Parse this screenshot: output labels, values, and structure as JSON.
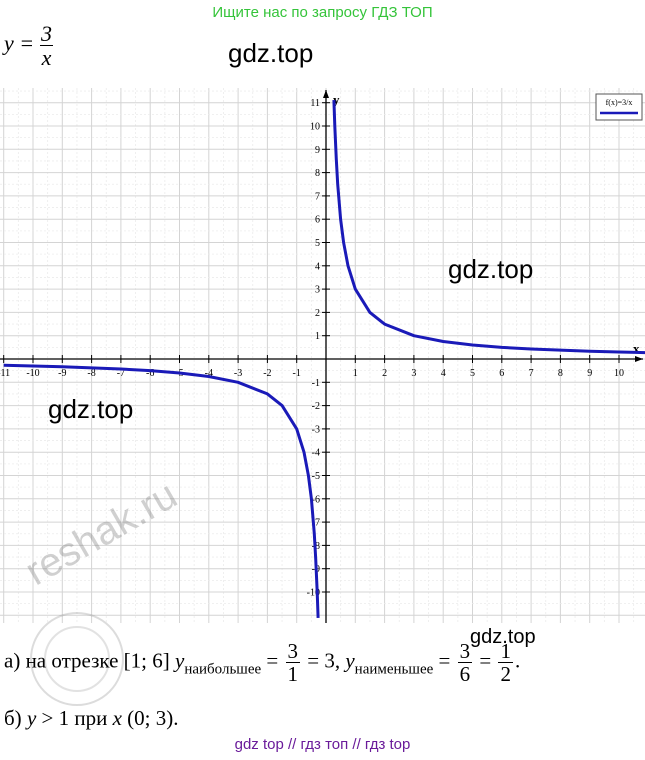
{
  "header": {
    "link_text": "Ищите нас по запросу ГДЗ ТОП"
  },
  "formula": {
    "lhs": "y =",
    "numerator": "3",
    "denominator": "x"
  },
  "watermarks": {
    "gdz_1": "gdz.top",
    "gdz_2": "gdz.top",
    "gdz_3": "gdz.top",
    "gdz_4": "gdz.top",
    "reshak": "reshak.ru"
  },
  "answers": {
    "a_prefix": "а) на отрезке [1; 6] ",
    "a_y1": "y",
    "a_sub1": "наибольшее",
    "a_eq1": " = ",
    "a_f1_num": "3",
    "a_f1_den": "1",
    "a_res1": " = 3, ",
    "a_y2": "y",
    "a_sub2": "наименьшее",
    "a_eq2": " = ",
    "a_f2_num": "3",
    "a_f2_den": "6",
    "a_eq3": " = ",
    "a_f3_num": "1",
    "a_f3_den": "2",
    "a_end": ".",
    "b_prefix": "б) ",
    "b_y": "y",
    "b_gt": " > 1 при ",
    "b_x": "x",
    "b_interval": " (0; 3)."
  },
  "footer": {
    "text": "gdz top  //  гдз топ  //  гдз top"
  },
  "colors": {
    "curve": "#1a1ab8",
    "grid": "#d4d4d4",
    "header_link": "#35c43a",
    "footer": "#6a1b9a"
  },
  "chart_data": {
    "type": "line",
    "function": "f(x)=3/x",
    "legend": "f(x)=3/x",
    "legend_position": "top-right",
    "xlabel": "x",
    "ylabel": "y",
    "xlim": [
      -11,
      11
    ],
    "ylim": [
      -11,
      11
    ],
    "grid": true,
    "x_ticks": [
      -11,
      -10,
      -9,
      -8,
      -7,
      -6,
      -5,
      -4,
      -3,
      -2,
      -1,
      1,
      2,
      3,
      4,
      5,
      6,
      7,
      8,
      9,
      10
    ],
    "y_ticks": [
      -10,
      -9,
      -8,
      -7,
      -6,
      -5,
      -4,
      -3,
      -2,
      -1,
      1,
      2,
      3,
      4,
      5,
      6,
      7,
      8,
      9,
      10,
      11
    ],
    "series": [
      {
        "name": "f(x)=3/x",
        "branch": "positive",
        "x": [
          0.27,
          0.3,
          0.35,
          0.4,
          0.5,
          0.6,
          0.75,
          1,
          1.5,
          2,
          3,
          4,
          5,
          6,
          7,
          8,
          9,
          10,
          11
        ],
        "y": [
          11.11,
          10,
          8.57,
          7.5,
          6,
          5,
          4,
          3,
          2,
          1.5,
          1,
          0.75,
          0.6,
          0.5,
          0.43,
          0.38,
          0.33,
          0.3,
          0.27
        ]
      },
      {
        "name": "f(x)=3/x",
        "branch": "negative",
        "x": [
          -11,
          -10,
          -9,
          -8,
          -7,
          -6,
          -5,
          -4,
          -3,
          -2,
          -1.5,
          -1,
          -0.75,
          -0.6,
          -0.5,
          -0.4,
          -0.35,
          -0.3,
          -0.27
        ],
        "y": [
          -0.27,
          -0.3,
          -0.33,
          -0.38,
          -0.43,
          -0.5,
          -0.6,
          -0.75,
          -1,
          -1.5,
          -2,
          -3,
          -4,
          -5,
          -6,
          -7.5,
          -8.57,
          -10,
          -11.11
        ]
      }
    ]
  }
}
